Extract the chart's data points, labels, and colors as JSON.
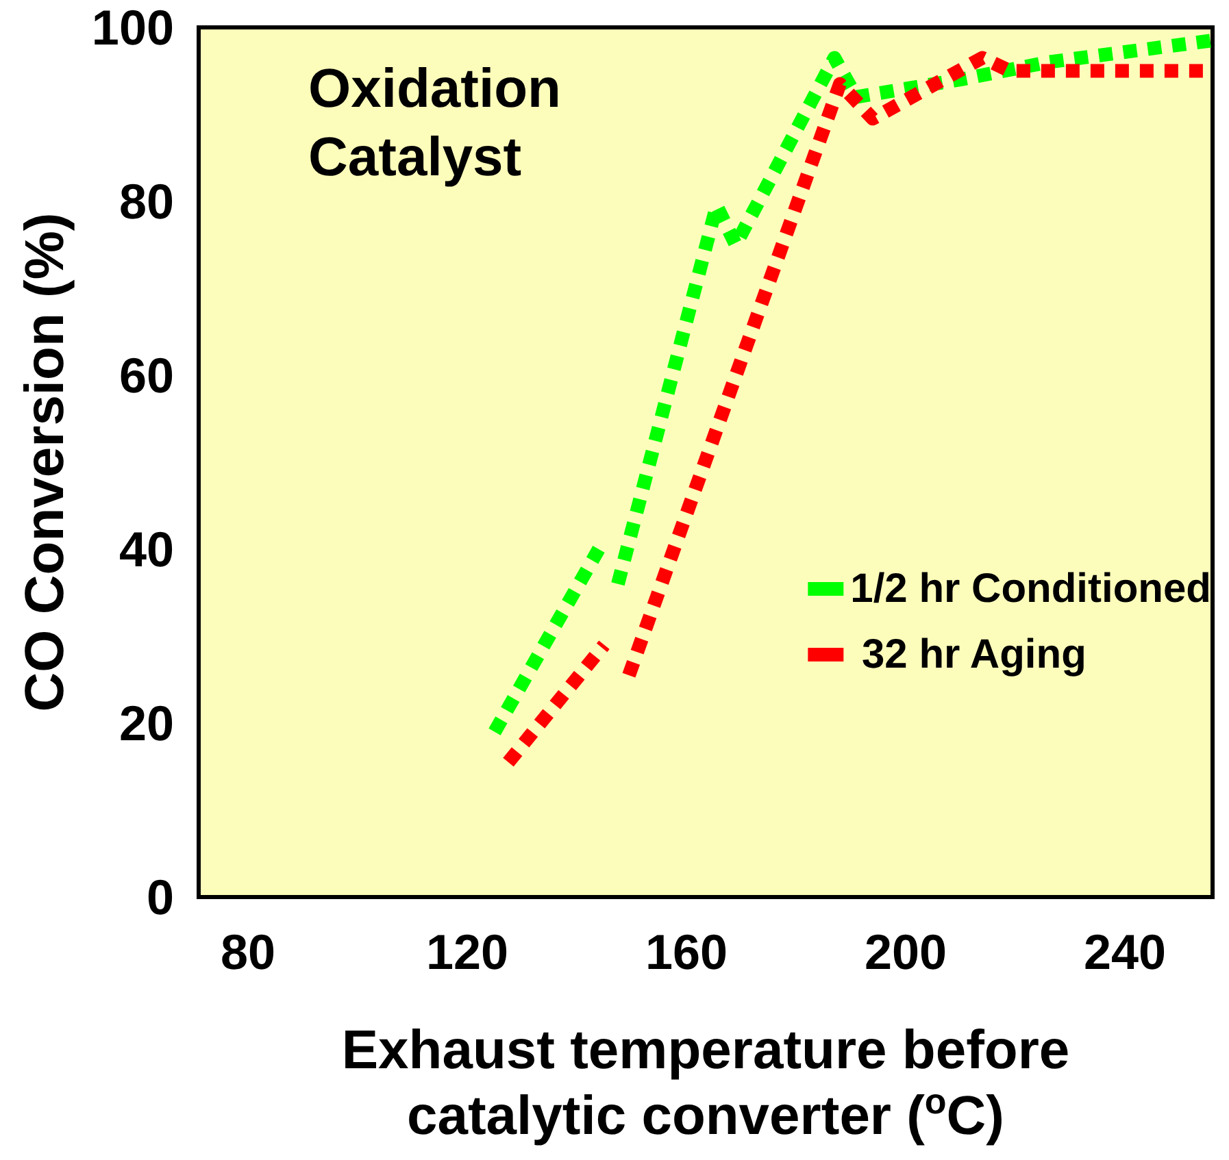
{
  "chart_data": {
    "type": "line",
    "xlabel": "Exhaust temperature before catalytic converter ($^{o}$C)",
    "ylabel": "CO Conversion (%)",
    "annotations": [
      "Oxidation Catalyst"
    ],
    "xlim": [
      71,
      256
    ],
    "xticks": [
      80,
      120,
      160,
      200,
      240
    ],
    "ylim": [
      0,
      100
    ],
    "yticks": [
      0,
      20,
      40,
      60,
      80,
      100
    ],
    "grid": false,
    "legend": "right",
    "marker": "none",
    "line_style": "dotted",
    "series": [
      {
        "name": "1/2 hr Conditioned",
        "color": "#00ff00",
        "x": [
          125,
          144,
          146,
          147.5,
          165.5,
          169,
          187,
          191,
          210,
          226,
          256
        ],
        "values": [
          19,
          40,
          null,
          36,
          79.5,
          75,
          96.5,
          92,
          94,
          96,
          98.5
        ]
      },
      {
        "name": " 32 hr Aging",
        "color": "#ff0000",
        "x": [
          127.5,
          145,
          147,
          149.5,
          188,
          194,
          214,
          219,
          255
        ],
        "values": [
          15.5,
          29,
          null,
          25.5,
          93.5,
          89.5,
          96.5,
          95,
          95
        ]
      }
    ]
  }
}
